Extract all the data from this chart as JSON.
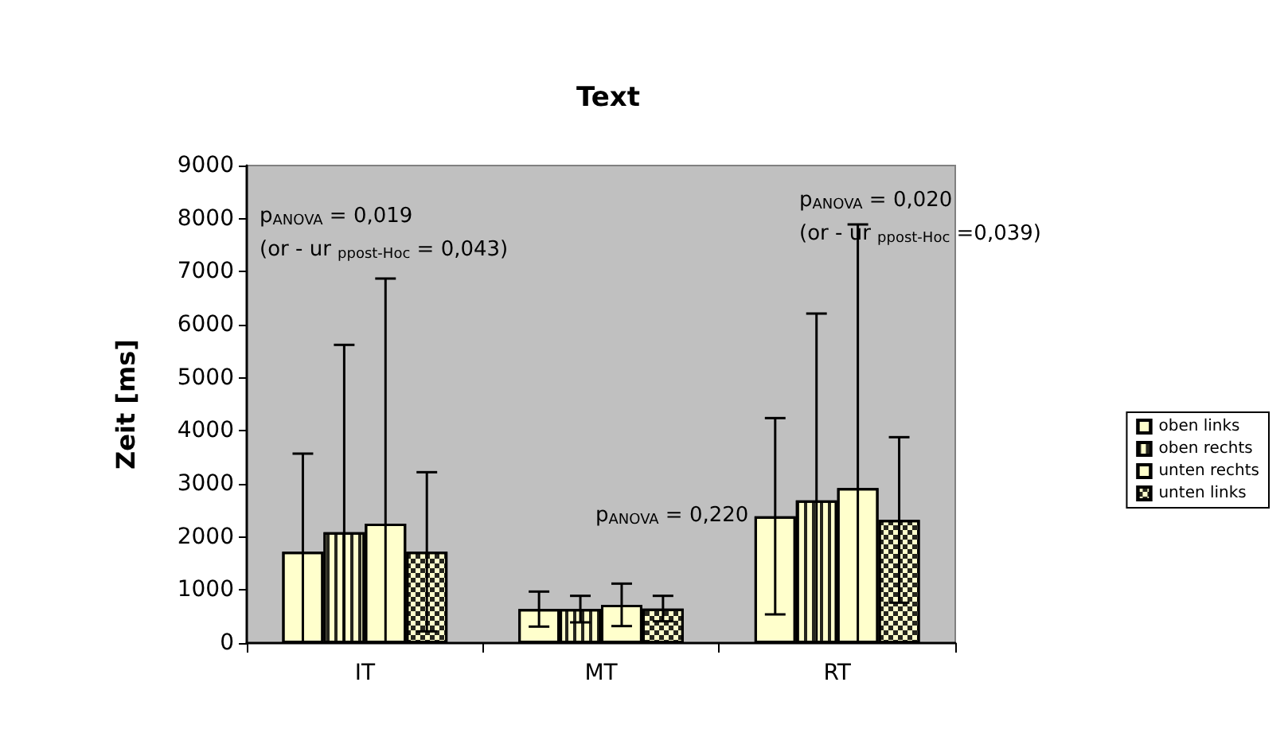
{
  "chart_data": {
    "type": "bar",
    "title": "Text",
    "ylabel": "Zeit [ms]",
    "categories": [
      "IT",
      "MT",
      "RT"
    ],
    "series": [
      {
        "name": "oben links",
        "color": "#ffffcc",
        "values": [
          1720,
          640,
          2390
        ],
        "errors": [
          [
            0,
            3570
          ],
          330,
          1850
        ]
      },
      {
        "name": "oben rechts",
        "color": "#ffffcc",
        "values": [
          2090,
          640,
          2690
        ],
        "errors": [
          [
            0,
            5620
          ],
          250,
          [
            0,
            6210
          ]
        ]
      },
      {
        "name": "unten rechts",
        "color": "#ffffcc",
        "values": [
          2250,
          720,
          2920
        ],
        "errors": [
          [
            0,
            6870
          ],
          400,
          [
            0,
            7890
          ]
        ]
      },
      {
        "name": "unten links",
        "color": "#ffffcc",
        "values": [
          1720,
          650,
          2320
        ],
        "errors": [
          1500,
          240,
          1560
        ]
      }
    ],
    "ylim": [
      0,
      9000
    ],
    "yticks": [
      0,
      1000,
      2000,
      3000,
      4000,
      5000,
      6000,
      7000,
      8000,
      9000
    ],
    "grid": false,
    "legend": "right",
    "annotations": [
      "p$_{ANOVA}$ = 0,019",
      "(or - ur $_{ppost-Hoc}$ = 0,043)",
      "p$_{ANOVA}$ = 0,220",
      "p$_{ANOVA}$ = 0,020",
      "(or - ur $_{ppost-Hoc}$ =0,039)"
    ]
  }
}
